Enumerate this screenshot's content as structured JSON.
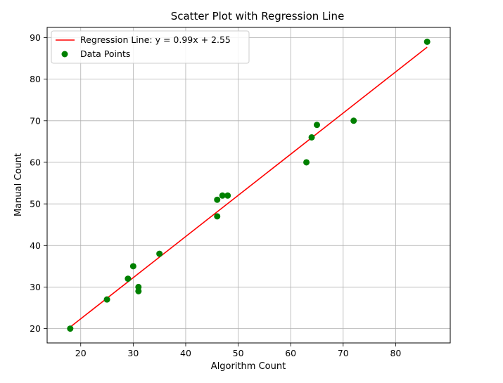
{
  "chart_data": {
    "type": "scatter",
    "title": "Scatter Plot with Regression Line",
    "xlabel": "Algorithm Count",
    "ylabel": "Manual Count",
    "xlim": [
      13.6,
      90.4
    ],
    "ylim": [
      16.55,
      92.45
    ],
    "xticks": [
      20,
      30,
      40,
      50,
      60,
      70,
      80
    ],
    "yticks": [
      20,
      30,
      40,
      50,
      60,
      70,
      80,
      90
    ],
    "grid": true,
    "legend_position": "top-left",
    "series": [
      {
        "name": "Data Points",
        "kind": "scatter",
        "color": "#008000",
        "x": [
          18,
          25,
          29,
          30,
          31,
          31,
          35,
          46,
          46,
          47,
          48,
          63,
          64,
          65,
          72,
          86
        ],
        "y": [
          20,
          27,
          32,
          35,
          30,
          29,
          38,
          51,
          47,
          52,
          52,
          60,
          66,
          69,
          70,
          89
        ]
      },
      {
        "name": "Regression Line: y = 0.99x + 2.55",
        "kind": "line",
        "color": "#ff0000",
        "slope": 0.99,
        "intercept": 2.55,
        "x_range": [
          18,
          86
        ]
      }
    ]
  }
}
